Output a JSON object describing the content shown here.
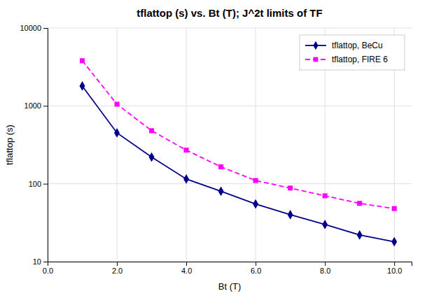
{
  "chart_data": {
    "type": "line",
    "title": "tflattop (s) vs. Bt (T); J^2t limits of TF",
    "xlabel": "Bt (T)",
    "ylabel": "tflattop (s)",
    "x": [
      1.0,
      2.0,
      3.0,
      4.0,
      5.0,
      6.0,
      7.0,
      8.0,
      9.0,
      10.0
    ],
    "series": [
      {
        "name": "tflattop, BeCu",
        "color": "#00008B",
        "marker": "diamond",
        "line_style": "solid",
        "values": [
          1800,
          450,
          220,
          115,
          80,
          55,
          40,
          30,
          22,
          18
        ]
      },
      {
        "name": "tflattop, FIRE 6",
        "color": "#FF00FF",
        "marker": "square",
        "line_style": "dashed",
        "values": [
          3800,
          1050,
          480,
          270,
          165,
          110,
          88,
          70,
          56,
          48
        ]
      }
    ],
    "xlim": [
      0.0,
      10.5
    ],
    "xticks": [
      {
        "value": 0.0,
        "label": "0.0"
      },
      {
        "value": 2.0,
        "label": "2.0"
      },
      {
        "value": 4.0,
        "label": "4.0"
      },
      {
        "value": 6.0,
        "label": "6.0"
      },
      {
        "value": 8.0,
        "label": "8.0"
      },
      {
        "value": 10.0,
        "label": "10.0"
      }
    ],
    "ylim": [
      10,
      10000
    ],
    "yticks": [
      10,
      100,
      1000,
      10000
    ],
    "log": "y",
    "grid": true,
    "legend": "upper right"
  }
}
